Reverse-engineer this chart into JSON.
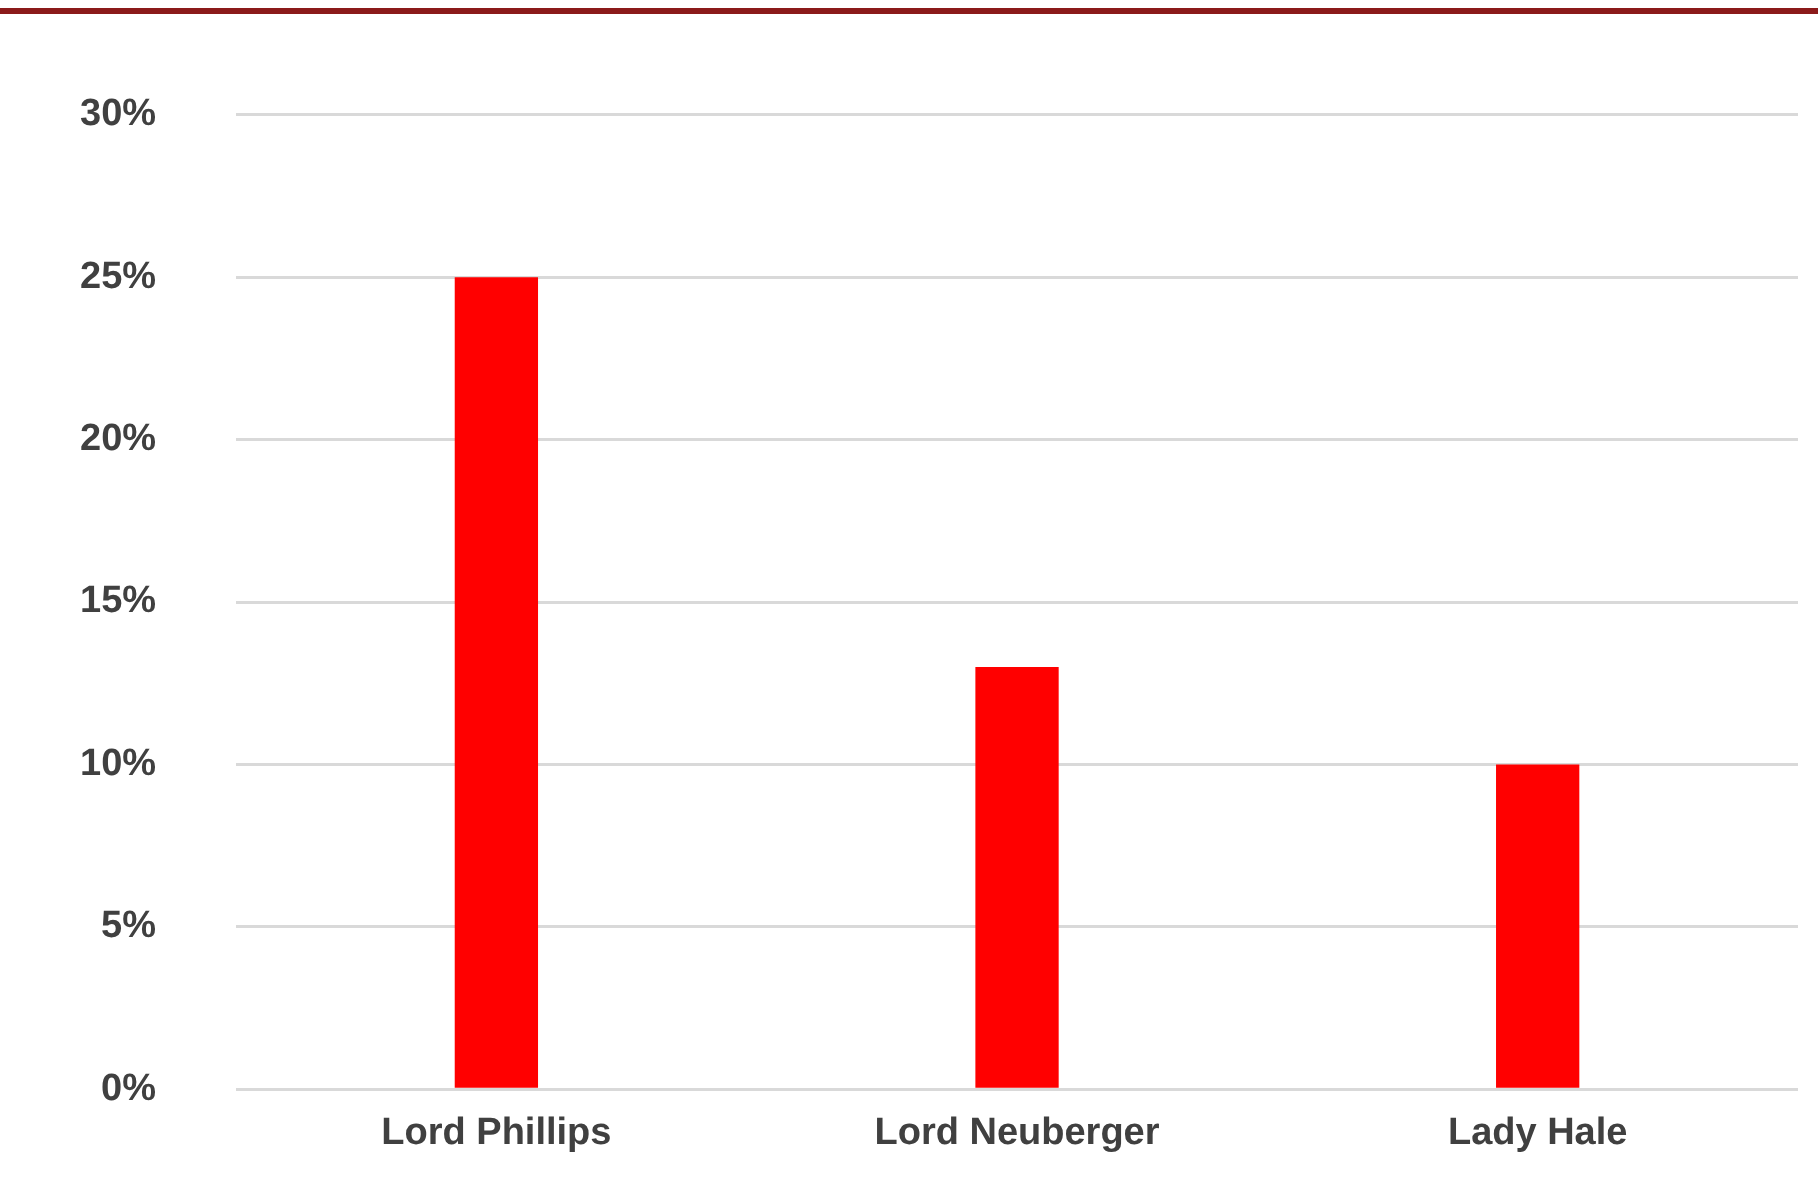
{
  "chart_data": {
    "type": "bar",
    "categories": [
      "Lord Phillips",
      "Lord Neuberger",
      "Lady Hale"
    ],
    "values": [
      25,
      13,
      10
    ],
    "color": "#ff0000",
    "ylim": [
      0,
      30
    ],
    "yticks": [
      {
        "value": 0,
        "label": "0%"
      },
      {
        "value": 5,
        "label": "5%"
      },
      {
        "value": 10,
        "label": "10%"
      },
      {
        "value": 15,
        "label": "15%"
      },
      {
        "value": 20,
        "label": "20%"
      },
      {
        "value": 25,
        "label": "25%"
      },
      {
        "value": 30,
        "label": "30%"
      }
    ],
    "grid": "y"
  }
}
